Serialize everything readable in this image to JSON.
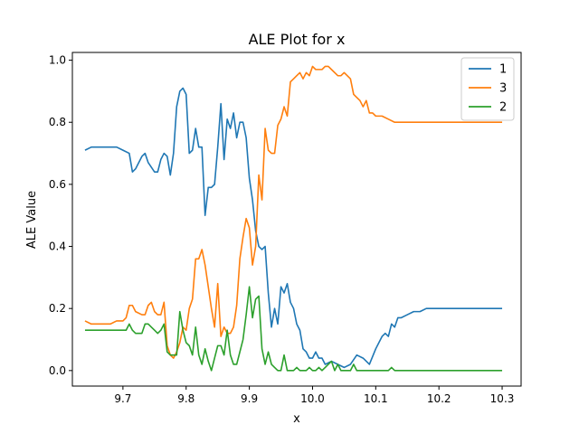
{
  "chart_data": {
    "type": "line",
    "title": "ALE Plot for x",
    "xlabel": "x",
    "ylabel": "ALE Value",
    "xlim": [
      9.62,
      10.33
    ],
    "ylim": [
      -0.05,
      1.025
    ],
    "xticks": [
      9.7,
      9.8,
      9.9,
      10.0,
      10.1,
      10.2,
      10.3
    ],
    "xtick_labels": [
      "9.7",
      "9.8",
      "9.9",
      "10.0",
      "10.1",
      "10.2",
      "10.3"
    ],
    "yticks": [
      0.0,
      0.2,
      0.4,
      0.6,
      0.8,
      1.0
    ],
    "ytick_labels": [
      "0.0",
      "0.2",
      "0.4",
      "0.6",
      "0.8",
      "1.0"
    ],
    "grid": false,
    "legend_position": "top-right",
    "series": [
      {
        "name": "1",
        "color": "#1f77b4",
        "points": [
          [
            9.64,
            0.71
          ],
          [
            9.65,
            0.72
          ],
          [
            9.66,
            0.72
          ],
          [
            9.67,
            0.72
          ],
          [
            9.68,
            0.72
          ],
          [
            9.69,
            0.72
          ],
          [
            9.7,
            0.71
          ],
          [
            9.71,
            0.7
          ],
          [
            9.715,
            0.64
          ],
          [
            9.72,
            0.65
          ],
          [
            9.73,
            0.69
          ],
          [
            9.735,
            0.7
          ],
          [
            9.74,
            0.67
          ],
          [
            9.75,
            0.64
          ],
          [
            9.755,
            0.64
          ],
          [
            9.76,
            0.68
          ],
          [
            9.765,
            0.7
          ],
          [
            9.77,
            0.69
          ],
          [
            9.775,
            0.63
          ],
          [
            9.78,
            0.7
          ],
          [
            9.785,
            0.85
          ],
          [
            9.79,
            0.9
          ],
          [
            9.795,
            0.91
          ],
          [
            9.8,
            0.89
          ],
          [
            9.805,
            0.7
          ],
          [
            9.81,
            0.71
          ],
          [
            9.815,
            0.78
          ],
          [
            9.82,
            0.72
          ],
          [
            9.825,
            0.72
          ],
          [
            9.83,
            0.5
          ],
          [
            9.835,
            0.59
          ],
          [
            9.84,
            0.59
          ],
          [
            9.845,
            0.6
          ],
          [
            9.85,
            0.72
          ],
          [
            9.855,
            0.86
          ],
          [
            9.86,
            0.68
          ],
          [
            9.865,
            0.81
          ],
          [
            9.87,
            0.78
          ],
          [
            9.875,
            0.83
          ],
          [
            9.88,
            0.75
          ],
          [
            9.885,
            0.8
          ],
          [
            9.89,
            0.8
          ],
          [
            9.895,
            0.75
          ],
          [
            9.9,
            0.62
          ],
          [
            9.905,
            0.55
          ],
          [
            9.91,
            0.45
          ],
          [
            9.915,
            0.4
          ],
          [
            9.92,
            0.39
          ],
          [
            9.925,
            0.4
          ],
          [
            9.93,
            0.25
          ],
          [
            9.935,
            0.14
          ],
          [
            9.94,
            0.2
          ],
          [
            9.945,
            0.15
          ],
          [
            9.95,
            0.27
          ],
          [
            9.955,
            0.25
          ],
          [
            9.96,
            0.28
          ],
          [
            9.965,
            0.22
          ],
          [
            9.97,
            0.2
          ],
          [
            9.975,
            0.15
          ],
          [
            9.98,
            0.13
          ],
          [
            9.985,
            0.07
          ],
          [
            9.99,
            0.06
          ],
          [
            9.995,
            0.04
          ],
          [
            10.0,
            0.04
          ],
          [
            10.005,
            0.06
          ],
          [
            10.01,
            0.04
          ],
          [
            10.015,
            0.04
          ],
          [
            10.02,
            0.02
          ],
          [
            10.03,
            0.03
          ],
          [
            10.04,
            0.02
          ],
          [
            10.05,
            0.01
          ],
          [
            10.06,
            0.02
          ],
          [
            10.07,
            0.05
          ],
          [
            10.08,
            0.04
          ],
          [
            10.09,
            0.02
          ],
          [
            10.1,
            0.07
          ],
          [
            10.11,
            0.11
          ],
          [
            10.115,
            0.12
          ],
          [
            10.12,
            0.11
          ],
          [
            10.125,
            0.15
          ],
          [
            10.13,
            0.14
          ],
          [
            10.135,
            0.17
          ],
          [
            10.14,
            0.17
          ],
          [
            10.15,
            0.18
          ],
          [
            10.16,
            0.19
          ],
          [
            10.17,
            0.19
          ],
          [
            10.18,
            0.2
          ],
          [
            10.2,
            0.2
          ],
          [
            10.22,
            0.2
          ],
          [
            10.25,
            0.2
          ],
          [
            10.3,
            0.2
          ]
        ]
      },
      {
        "name": "3",
        "color": "#ff7f0e",
        "points": [
          [
            9.64,
            0.16
          ],
          [
            9.65,
            0.15
          ],
          [
            9.66,
            0.15
          ],
          [
            9.67,
            0.15
          ],
          [
            9.68,
            0.15
          ],
          [
            9.69,
            0.16
          ],
          [
            9.7,
            0.16
          ],
          [
            9.705,
            0.17
          ],
          [
            9.71,
            0.21
          ],
          [
            9.715,
            0.21
          ],
          [
            9.72,
            0.19
          ],
          [
            9.73,
            0.18
          ],
          [
            9.735,
            0.18
          ],
          [
            9.74,
            0.21
          ],
          [
            9.745,
            0.22
          ],
          [
            9.75,
            0.19
          ],
          [
            9.755,
            0.18
          ],
          [
            9.76,
            0.18
          ],
          [
            9.765,
            0.22
          ],
          [
            9.77,
            0.08
          ],
          [
            9.775,
            0.05
          ],
          [
            9.78,
            0.04
          ],
          [
            9.785,
            0.06
          ],
          [
            9.79,
            0.09
          ],
          [
            9.795,
            0.14
          ],
          [
            9.8,
            0.13
          ],
          [
            9.805,
            0.2
          ],
          [
            9.81,
            0.23
          ],
          [
            9.815,
            0.36
          ],
          [
            9.82,
            0.36
          ],
          [
            9.825,
            0.39
          ],
          [
            9.83,
            0.34
          ],
          [
            9.835,
            0.27
          ],
          [
            9.84,
            0.2
          ],
          [
            9.845,
            0.14
          ],
          [
            9.85,
            0.28
          ],
          [
            9.855,
            0.11
          ],
          [
            9.86,
            0.14
          ],
          [
            9.865,
            0.12
          ],
          [
            9.87,
            0.12
          ],
          [
            9.875,
            0.14
          ],
          [
            9.88,
            0.21
          ],
          [
            9.885,
            0.36
          ],
          [
            9.89,
            0.43
          ],
          [
            9.895,
            0.49
          ],
          [
            9.9,
            0.46
          ],
          [
            9.905,
            0.34
          ],
          [
            9.91,
            0.4
          ],
          [
            9.915,
            0.63
          ],
          [
            9.92,
            0.55
          ],
          [
            9.925,
            0.78
          ],
          [
            9.93,
            0.71
          ],
          [
            9.935,
            0.7
          ],
          [
            9.94,
            0.7
          ],
          [
            9.945,
            0.79
          ],
          [
            9.95,
            0.81
          ],
          [
            9.955,
            0.85
          ],
          [
            9.96,
            0.82
          ],
          [
            9.965,
            0.93
          ],
          [
            9.97,
            0.94
          ],
          [
            9.975,
            0.95
          ],
          [
            9.98,
            0.96
          ],
          [
            9.985,
            0.94
          ],
          [
            9.99,
            0.96
          ],
          [
            9.995,
            0.95
          ],
          [
            10.0,
            0.98
          ],
          [
            10.005,
            0.97
          ],
          [
            10.01,
            0.97
          ],
          [
            10.015,
            0.97
          ],
          [
            10.02,
            0.98
          ],
          [
            10.025,
            0.98
          ],
          [
            10.03,
            0.97
          ],
          [
            10.04,
            0.95
          ],
          [
            10.045,
            0.95
          ],
          [
            10.05,
            0.96
          ],
          [
            10.06,
            0.94
          ],
          [
            10.065,
            0.89
          ],
          [
            10.07,
            0.88
          ],
          [
            10.075,
            0.87
          ],
          [
            10.08,
            0.85
          ],
          [
            10.085,
            0.87
          ],
          [
            10.09,
            0.83
          ],
          [
            10.095,
            0.83
          ],
          [
            10.1,
            0.82
          ],
          [
            10.11,
            0.82
          ],
          [
            10.12,
            0.81
          ],
          [
            10.13,
            0.8
          ],
          [
            10.15,
            0.8
          ],
          [
            10.2,
            0.8
          ],
          [
            10.25,
            0.8
          ],
          [
            10.3,
            0.8
          ]
        ]
      },
      {
        "name": "2",
        "color": "#2ca02c",
        "points": [
          [
            9.64,
            0.13
          ],
          [
            9.65,
            0.13
          ],
          [
            9.66,
            0.13
          ],
          [
            9.67,
            0.13
          ],
          [
            9.68,
            0.13
          ],
          [
            9.69,
            0.13
          ],
          [
            9.7,
            0.13
          ],
          [
            9.705,
            0.13
          ],
          [
            9.71,
            0.15
          ],
          [
            9.715,
            0.13
          ],
          [
            9.72,
            0.12
          ],
          [
            9.73,
            0.12
          ],
          [
            9.735,
            0.15
          ],
          [
            9.74,
            0.15
          ],
          [
            9.745,
            0.14
          ],
          [
            9.75,
            0.13
          ],
          [
            9.755,
            0.12
          ],
          [
            9.76,
            0.13
          ],
          [
            9.765,
            0.15
          ],
          [
            9.77,
            0.06
          ],
          [
            9.775,
            0.05
          ],
          [
            9.78,
            0.05
          ],
          [
            9.785,
            0.05
          ],
          [
            9.79,
            0.19
          ],
          [
            9.795,
            0.13
          ],
          [
            9.8,
            0.09
          ],
          [
            9.805,
            0.08
          ],
          [
            9.81,
            0.05
          ],
          [
            9.815,
            0.14
          ],
          [
            9.82,
            0.05
          ],
          [
            9.825,
            0.02
          ],
          [
            9.83,
            0.07
          ],
          [
            9.835,
            0.03
          ],
          [
            9.84,
            0.0
          ],
          [
            9.845,
            0.04
          ],
          [
            9.85,
            0.08
          ],
          [
            9.855,
            0.08
          ],
          [
            9.86,
            0.05
          ],
          [
            9.865,
            0.13
          ],
          [
            9.87,
            0.05
          ],
          [
            9.875,
            0.02
          ],
          [
            9.88,
            0.02
          ],
          [
            9.885,
            0.06
          ],
          [
            9.89,
            0.1
          ],
          [
            9.895,
            0.18
          ],
          [
            9.9,
            0.27
          ],
          [
            9.905,
            0.17
          ],
          [
            9.91,
            0.23
          ],
          [
            9.915,
            0.24
          ],
          [
            9.92,
            0.07
          ],
          [
            9.925,
            0.02
          ],
          [
            9.93,
            0.06
          ],
          [
            9.935,
            0.02
          ],
          [
            9.94,
            0.01
          ],
          [
            9.945,
            0.0
          ],
          [
            9.95,
            0.0
          ],
          [
            9.955,
            0.05
          ],
          [
            9.96,
            0.0
          ],
          [
            9.965,
            0.0
          ],
          [
            9.97,
            0.0
          ],
          [
            9.975,
            0.01
          ],
          [
            9.98,
            0.0
          ],
          [
            9.985,
            0.0
          ],
          [
            9.99,
            0.0
          ],
          [
            9.995,
            0.01
          ],
          [
            10.0,
            0.0
          ],
          [
            10.005,
            0.0
          ],
          [
            10.01,
            0.01
          ],
          [
            10.015,
            0.0
          ],
          [
            10.02,
            0.01
          ],
          [
            10.025,
            0.02
          ],
          [
            10.03,
            0.03
          ],
          [
            10.035,
            0.0
          ],
          [
            10.04,
            0.02
          ],
          [
            10.045,
            0.0
          ],
          [
            10.05,
            0.0
          ],
          [
            10.055,
            0.0
          ],
          [
            10.06,
            0.0
          ],
          [
            10.065,
            0.02
          ],
          [
            10.07,
            0.0
          ],
          [
            10.08,
            0.0
          ],
          [
            10.09,
            0.0
          ],
          [
            10.1,
            0.0
          ],
          [
            10.11,
            0.0
          ],
          [
            10.12,
            0.0
          ],
          [
            10.125,
            0.01
          ],
          [
            10.13,
            0.0
          ],
          [
            10.15,
            0.0
          ],
          [
            10.2,
            0.0
          ],
          [
            10.25,
            0.0
          ],
          [
            10.3,
            0.0
          ]
        ]
      }
    ]
  }
}
